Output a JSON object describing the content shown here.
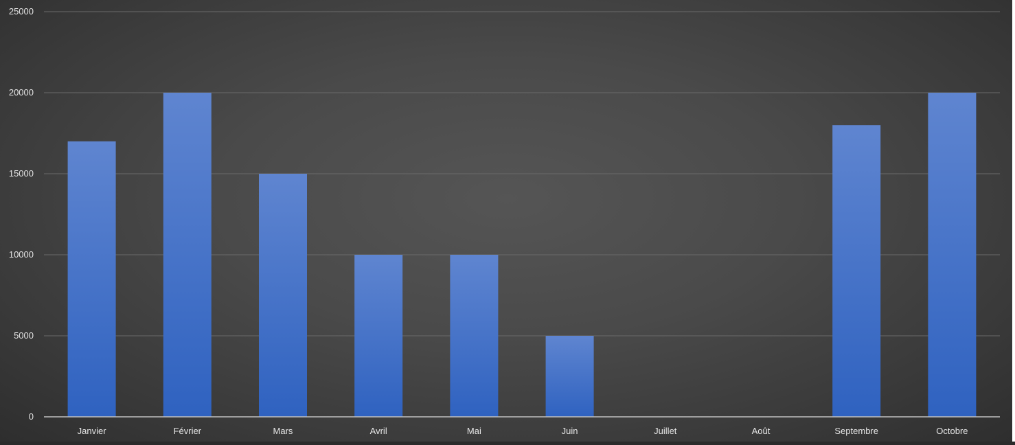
{
  "chart_data": {
    "type": "bar",
    "categories": [
      "Janvier",
      "Février",
      "Mars",
      "Avril",
      "Mai",
      "Juin",
      "Juillet",
      "Août",
      "Septembre",
      "Octobre"
    ],
    "values": [
      17000,
      20000,
      15000,
      10000,
      10000,
      5000,
      0,
      0,
      18000,
      20000
    ],
    "yticks": [
      "0",
      "5000",
      "10000",
      "15000",
      "20000",
      "25000"
    ],
    "ylim": [
      0,
      25000
    ],
    "grid": true,
    "colors": {
      "bar_top": "#5f85d0",
      "bar_bottom": "#2f62c0",
      "grid": "#6a6a6a",
      "axis": "#bfbfbf",
      "text": "#e6e6e6"
    }
  }
}
